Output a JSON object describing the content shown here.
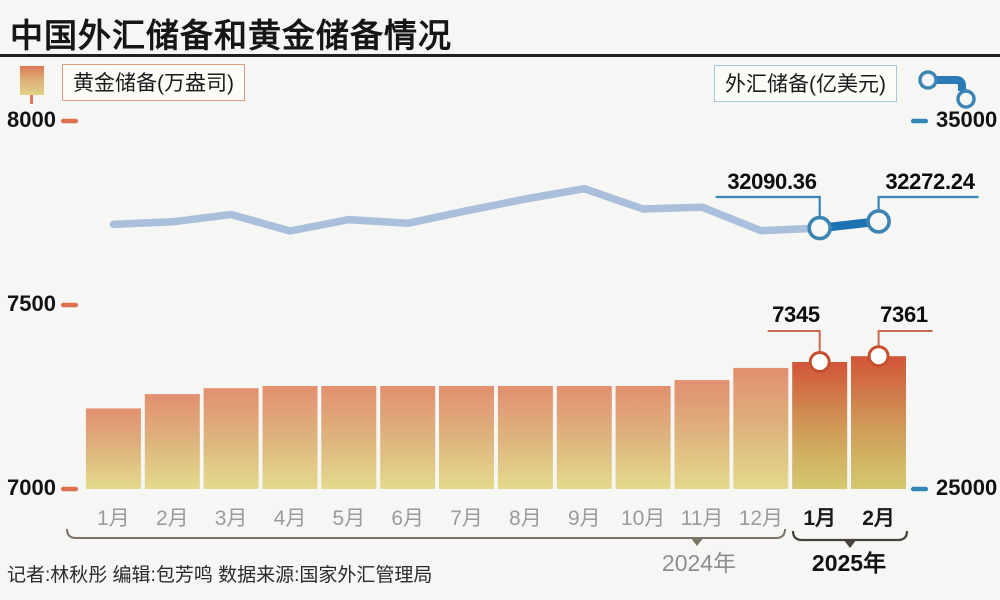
{
  "title": "中国外汇储备和黄金储备情况",
  "footer": {
    "credit": "记者:林秋彤  编辑:包芳鸣  数据来源:国家外汇管理局"
  },
  "chart_data": {
    "type": "combo-bar-line",
    "categories": [
      "1月",
      "2月",
      "3月",
      "4月",
      "5月",
      "6月",
      "7月",
      "8月",
      "9月",
      "10月",
      "11月",
      "12月",
      "1月",
      "2月"
    ],
    "category_groups": [
      {
        "label": "2024年",
        "from": 0,
        "to": 11
      },
      {
        "label": "2025年",
        "from": 12,
        "to": 13
      }
    ],
    "series": [
      {
        "name": "黄金储备(万盎司)",
        "type": "bar",
        "axis": "left",
        "values": [
          7219,
          7258,
          7274,
          7280,
          7280,
          7280,
          7280,
          7280,
          7280,
          7280,
          7296,
          7329,
          7345,
          7361
        ],
        "point_labels": [
          {
            "index": 12,
            "text": "7345",
            "side": "left"
          },
          {
            "index": 13,
            "text": "7361",
            "side": "right"
          }
        ]
      },
      {
        "name": "外汇储备(亿美元)",
        "type": "line",
        "axis": "right",
        "values": [
          32190,
          32260,
          32460,
          32010,
          32320,
          32220,
          32560,
          32880,
          33160,
          32610,
          32660,
          32020,
          32090.36,
          32272.24
        ],
        "point_labels": [
          {
            "index": 12,
            "text": "32090.36",
            "side": "left"
          },
          {
            "index": 13,
            "text": "32272.24",
            "side": "right"
          }
        ]
      }
    ],
    "axis_left": {
      "ticks": [
        "8000",
        "7500",
        "7000"
      ],
      "min": 7000,
      "max": 8000
    },
    "axis_right": {
      "ticks": [
        "35000",
        "25000"
      ],
      "min": 25000,
      "max": 35000
    },
    "highlight_from_index": 12,
    "legend_position": "top",
    "grid": false,
    "colors": {
      "bar_2024_top": "#e28f70",
      "bar_2024_mid": "#ddb57e",
      "bar_2024_bottom": "#e4da8d",
      "bar_2025_top": "#d25538",
      "bar_2025_mid": "#cf9a58",
      "bar_2025_bottom": "#d4c96f",
      "line_2024": "#aabfdb",
      "line_2025": "#1d72b2",
      "gold_accent": "#c96a50",
      "forex_accent": "#3b84b4",
      "tick_left": "#df6f4e",
      "tick_right": "#3084b6",
      "bracket_2024": "#7c7368",
      "bracket_2025": "#46413a"
    }
  }
}
